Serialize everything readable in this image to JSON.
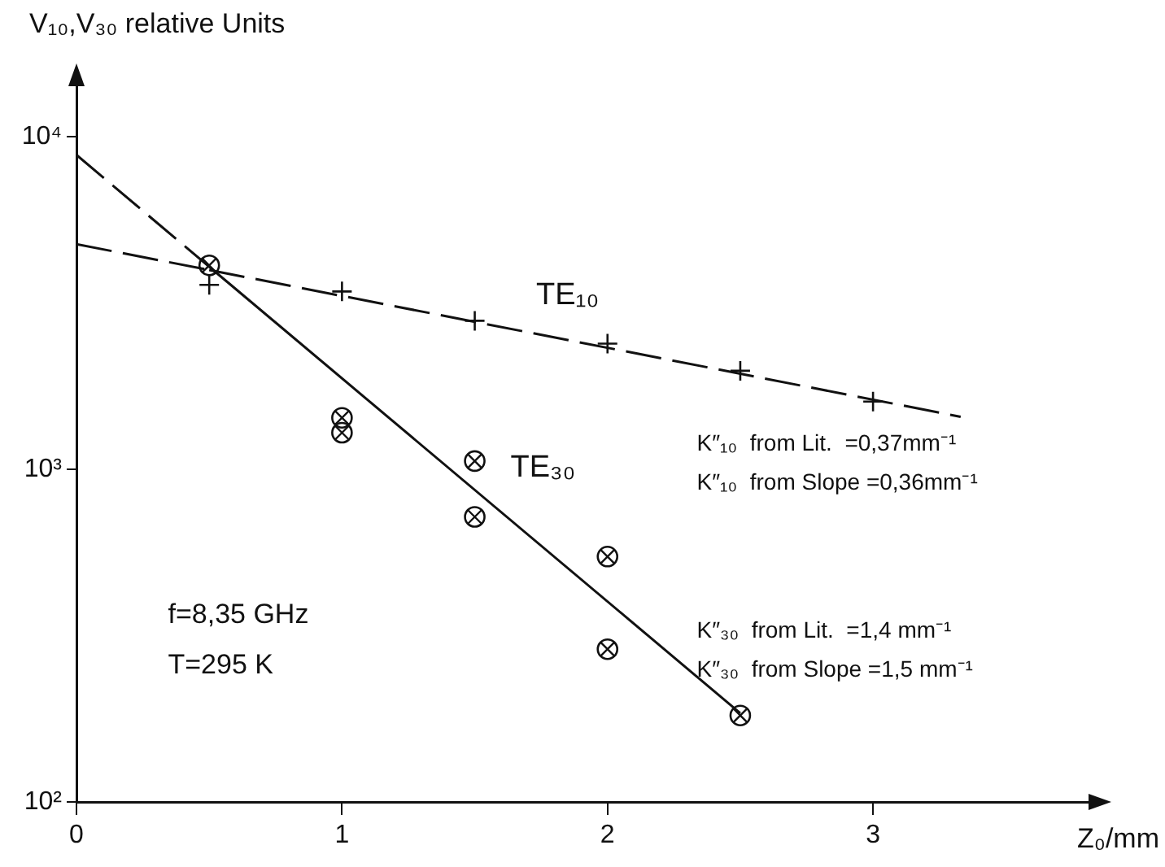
{
  "chart_data": {
    "type": "scatter",
    "xlabel": "Z₀/mm",
    "ylabel": "V₁₀,V₃₀ relative Units",
    "xlim": [
      0,
      3.83
    ],
    "xticks": [
      0,
      1,
      2,
      3
    ],
    "ylim": [
      100,
      14700
    ],
    "yticks": [
      {
        "value": 100,
        "label": "10²"
      },
      {
        "value": 1000,
        "label": "10³"
      },
      {
        "value": 10000,
        "label": "10⁴"
      }
    ],
    "log": "y",
    "grid": false,
    "legend": false,
    "series": [
      {
        "type": "line",
        "color": "#111111",
        "line_style": "dashed",
        "x": [
          0,
          0.5
        ],
        "values": [
          4760,
          3980
        ]
      },
      {
        "type": "line",
        "name": "TE₁₀",
        "color": "#111111",
        "line_style": "dashed",
        "x": [
          0.5,
          3.33
        ],
        "values": [
          3980,
          1440
        ]
      },
      {
        "type": "scatter",
        "color": "#111111",
        "marker": "cross",
        "x": [
          0.5,
          1,
          1.5,
          2,
          2.5,
          3
        ],
        "values": [
          3590,
          3430,
          2800,
          2390,
          1980,
          1600
        ]
      },
      {
        "type": "line",
        "color": "#111111",
        "line_style": "dashed",
        "x": [
          0,
          0.5
        ],
        "values": [
          8830,
          4070
        ]
      },
      {
        "type": "line",
        "name": "TE₃₀",
        "color": "#111111",
        "line_style": "solid",
        "x": [
          0.5,
          2.5
        ],
        "values": [
          4070,
          185
        ]
      },
      {
        "type": "scatter",
        "color": "#111111",
        "marker": "circle",
        "x": [
          0.5,
          1,
          1,
          1.5,
          1.5,
          2,
          2,
          2.5
        ],
        "values": [
          4110,
          1430,
          1290,
          1060,
          720,
          547,
          288,
          182
        ]
      }
    ],
    "annotations": [
      "f=8,35 GHz",
      "T=295 K",
      "K″₁₀  from Lit.  =0,37mm⁻¹",
      "K″₁₀  from Slope =0,36mm⁻¹",
      "K″₃₀  from Lit.  =1,4 mm⁻¹",
      "K″₃₀  from Slope =1,5 mm⁻¹"
    ]
  }
}
